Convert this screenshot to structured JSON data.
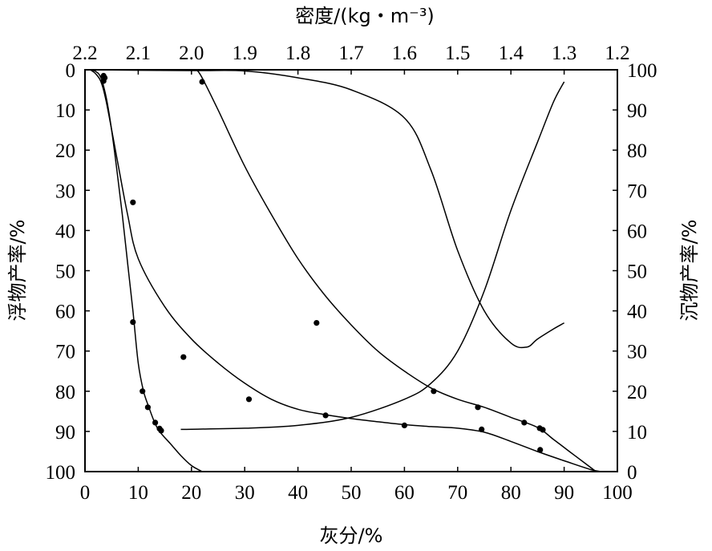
{
  "chart_data": {
    "type": "line",
    "title": "",
    "xlabel": "灰分/%",
    "x2label": "密度/(kg・m⁻³)",
    "ylabel": "浮物产率/%",
    "y2label": "沉物产率/%",
    "xlim": [
      0,
      100
    ],
    "x2lim": [
      2.2,
      1.2
    ],
    "ylim": [
      0,
      100
    ],
    "y_inverted": true,
    "y2lim": [
      100,
      0
    ],
    "grid": false,
    "legend": "none",
    "x_ticks": [
      "0",
      "10",
      "20",
      "30",
      "40",
      "50",
      "60",
      "70",
      "80",
      "90",
      "100"
    ],
    "x2_ticks": [
      "2.2",
      "2.1",
      "2.0",
      "1.9",
      "1.8",
      "1.7",
      "1.6",
      "1.5",
      "1.4",
      "1.3",
      "1.2"
    ],
    "y_ticks": [
      "0",
      "10",
      "20",
      "30",
      "40",
      "50",
      "60",
      "70",
      "80",
      "90",
      "100"
    ],
    "y2_ticks": [
      "100",
      "90",
      "80",
      "70",
      "60",
      "50",
      "40",
      "30",
      "20",
      "10",
      "0"
    ],
    "series": [
      {
        "curve": [
          [
            1,
            0
          ],
          [
            2,
            0.4
          ],
          [
            3,
            2
          ],
          [
            4,
            7
          ],
          [
            5,
            15
          ],
          [
            6,
            25
          ],
          [
            7,
            36
          ],
          [
            8,
            48
          ],
          [
            9,
            60
          ],
          [
            10,
            73
          ],
          [
            11,
            80
          ],
          [
            12,
            84
          ],
          [
            13,
            87.5
          ],
          [
            14,
            90
          ],
          [
            16,
            93
          ],
          [
            18,
            96
          ],
          [
            20,
            98.5
          ],
          [
            22,
            100
          ]
        ],
        "points": [
          [
            3.5,
            1.5
          ],
          [
            3.5,
            2.8
          ],
          [
            9,
            62.8
          ],
          [
            10.8,
            80
          ],
          [
            11.8,
            84
          ],
          [
            13.2,
            87.8
          ],
          [
            14,
            89.3
          ],
          [
            14.3,
            89.8
          ]
        ]
      },
      {
        "curve": [
          [
            1,
            0
          ],
          [
            2,
            1
          ],
          [
            3,
            3
          ],
          [
            4,
            8
          ],
          [
            6,
            22
          ],
          [
            8,
            36
          ],
          [
            10,
            47
          ],
          [
            15,
            59
          ],
          [
            20,
            67
          ],
          [
            25,
            73
          ],
          [
            30,
            78
          ],
          [
            35,
            82
          ],
          [
            40,
            84.5
          ],
          [
            45,
            85.8
          ],
          [
            50,
            86.8
          ],
          [
            55,
            87.6
          ],
          [
            60,
            88.3
          ],
          [
            65,
            88.8
          ],
          [
            70,
            89.2
          ],
          [
            75,
            90.2
          ],
          [
            80,
            92.5
          ],
          [
            85,
            95
          ],
          [
            90,
            97.3
          ],
          [
            95,
            99.5
          ],
          [
            97,
            100
          ]
        ],
        "points": [
          [
            3.7,
            2
          ],
          [
            9,
            33
          ],
          [
            18.5,
            71.5
          ],
          [
            30.8,
            82
          ],
          [
            45.2,
            86
          ],
          [
            60,
            88.5
          ],
          [
            74.5,
            89.5
          ],
          [
            85.5,
            94.6
          ]
        ]
      },
      {
        "curve": [
          [
            21,
            0
          ],
          [
            22,
            2
          ],
          [
            25,
            10
          ],
          [
            30,
            24
          ],
          [
            35,
            36
          ],
          [
            40,
            47
          ],
          [
            45,
            56
          ],
          [
            50,
            63.5
          ],
          [
            55,
            70
          ],
          [
            60,
            75
          ],
          [
            65,
            79.2
          ],
          [
            70,
            82
          ],
          [
            75,
            84
          ],
          [
            80,
            86.5
          ],
          [
            85,
            89
          ],
          [
            88,
            92
          ],
          [
            91,
            95
          ],
          [
            94,
            98
          ],
          [
            96,
            100
          ]
        ],
        "points": [
          [
            22,
            3
          ],
          [
            43.5,
            63
          ],
          [
            65.5,
            80
          ],
          [
            73.8,
            84
          ],
          [
            82.5,
            87.8
          ],
          [
            85.4,
            89.2
          ],
          [
            86,
            89.6
          ]
        ]
      },
      {
        "curve": [
          [
            2.2,
            0
          ],
          [
            2.0,
            0.2
          ],
          [
            1.9,
            0.3
          ],
          [
            1.8,
            2
          ],
          [
            1.7,
            5
          ],
          [
            1.6,
            12
          ],
          [
            1.55,
            25
          ],
          [
            1.5,
            45
          ],
          [
            1.45,
            60
          ],
          [
            1.4,
            68
          ],
          [
            1.37,
            69
          ],
          [
            1.35,
            67
          ],
          [
            1.32,
            64.5
          ],
          [
            1.3,
            63
          ]
        ]
      },
      {
        "curve": [
          [
            2.02,
            89.5
          ],
          [
            1.9,
            89.2
          ],
          [
            1.8,
            88.5
          ],
          [
            1.7,
            86.5
          ],
          [
            1.6,
            82
          ],
          [
            1.55,
            78
          ],
          [
            1.5,
            70
          ],
          [
            1.45,
            55
          ],
          [
            1.4,
            35
          ],
          [
            1.35,
            18
          ],
          [
            1.32,
            8
          ],
          [
            1.3,
            3
          ]
        ]
      }
    ]
  }
}
